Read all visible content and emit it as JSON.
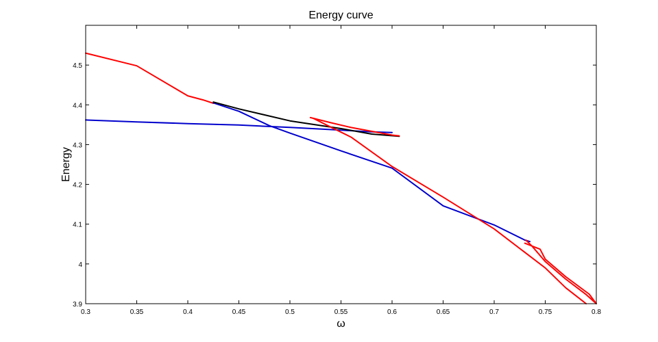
{
  "chart_data": {
    "type": "line",
    "title": "Energy curve",
    "xlabel": "ω",
    "ylabel": "Energy",
    "xlim": [
      0.3,
      0.8
    ],
    "ylim": [
      3.9,
      4.6
    ],
    "xticks": [
      "0.3",
      "0.35",
      "0.4",
      "0.45",
      "0.5",
      "0.55",
      "0.6",
      "0.65",
      "0.7",
      "0.75",
      "0.8"
    ],
    "yticks": [
      "3.9",
      "4",
      "4.1",
      "4.2",
      "4.3",
      "4.4",
      "4.5"
    ],
    "grid": false,
    "legend": false,
    "colors": {
      "red": "#ff0000",
      "blue": "#0000cc",
      "black": "#000000"
    },
    "series": [
      {
        "color": "red",
        "points": [
          [
            0.3,
            4.53
          ],
          [
            0.35,
            4.4982
          ],
          [
            0.4,
            4.4226
          ],
          [
            0.415,
            4.4124
          ],
          [
            0.425,
            4.404
          ]
        ]
      },
      {
        "color": "blue",
        "points": [
          [
            0.3,
            4.362
          ],
          [
            0.35,
            4.3571
          ],
          [
            0.4,
            4.3528
          ],
          [
            0.45,
            4.3492
          ],
          [
            0.5,
            4.3433
          ],
          [
            0.55,
            4.3364
          ],
          [
            0.58,
            4.332
          ],
          [
            0.6,
            4.3305
          ]
        ]
      },
      {
        "color": "blue",
        "points": [
          [
            0.425,
            4.405
          ],
          [
            0.45,
            4.3838
          ],
          [
            0.48,
            4.3475
          ],
          [
            0.5,
            4.3289
          ],
          [
            0.55,
            4.2842
          ],
          [
            0.6,
            4.2409
          ],
          [
            0.65,
            4.1461
          ],
          [
            0.7,
            4.098
          ],
          [
            0.73,
            4.06
          ],
          [
            0.735,
            4.0562
          ]
        ]
      },
      {
        "color": "black",
        "points": [
          [
            0.425,
            4.407
          ],
          [
            0.45,
            4.3899
          ],
          [
            0.5,
            4.3597
          ],
          [
            0.55,
            4.3403
          ],
          [
            0.58,
            4.3266
          ],
          [
            0.607,
            4.3209
          ]
        ]
      },
      {
        "color": "red",
        "points": [
          [
            0.52,
            4.368
          ],
          [
            0.54,
            4.355
          ],
          [
            0.56,
            4.343
          ],
          [
            0.6,
            4.324
          ],
          [
            0.607,
            4.322
          ]
        ]
      },
      {
        "color": "red",
        "points": [
          [
            0.523,
            4.366
          ],
          [
            0.54,
            4.344
          ],
          [
            0.56,
            4.3187
          ],
          [
            0.6,
            4.245
          ],
          [
            0.65,
            4.168
          ],
          [
            0.7,
            4.088
          ],
          [
            0.75,
            3.99
          ],
          [
            0.77,
            3.94
          ],
          [
            0.785,
            3.91
          ],
          [
            0.79,
            3.9
          ]
        ]
      },
      {
        "color": "red",
        "points": [
          [
            0.731,
            4.06
          ],
          [
            0.737,
            4.045
          ],
          [
            0.75,
            4.006
          ],
          [
            0.77,
            3.962
          ],
          [
            0.79,
            3.923
          ],
          [
            0.8,
            3.9
          ]
        ]
      },
      {
        "color": "red",
        "points": [
          [
            0.73,
            4.052
          ],
          [
            0.745,
            4.037
          ],
          [
            0.75,
            4.012
          ],
          [
            0.77,
            3.968
          ],
          [
            0.793,
            3.924
          ],
          [
            0.8,
            3.9
          ]
        ]
      }
    ]
  }
}
